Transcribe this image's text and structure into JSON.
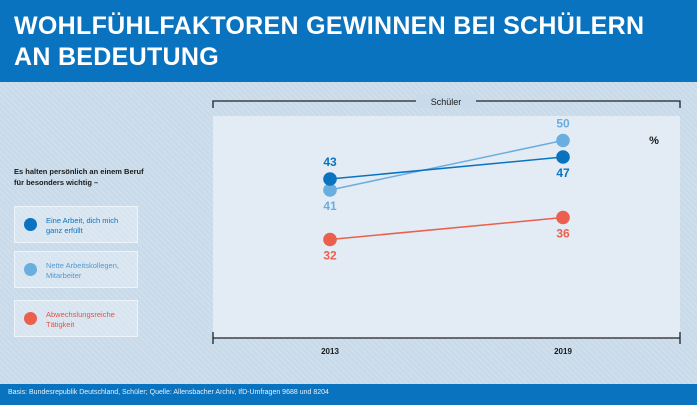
{
  "header": {
    "title_line1": "WOHLFÜHLFAKTOREN GEWINNEN BEI SCHÜLERN",
    "title_line2": "AN BEDEUTUNG"
  },
  "intro": "Es halten persönlich an einem Beruf für besonders wichtig –",
  "legend": [
    {
      "label": "Eine Arbeit, dich mich ganz erfüllt",
      "color": "#0a73bf"
    },
    {
      "label": "Nette Arbeitskollegen, Mitarbeiter",
      "color": "#6aaee0"
    },
    {
      "label": "Abwechslungsreiche Tätigkeit",
      "color": "#eb5f4e"
    }
  ],
  "footer": {
    "source": "Basis: Bundesrepublik Deutschland, Schüler; Quelle: Allensbacher Archiv, IfD-Umfragen 9688 und 8204"
  },
  "chart_data": {
    "type": "line",
    "group_label": "Schüler",
    "unit": "%",
    "x": [
      "2013",
      "2019"
    ],
    "series": [
      {
        "name": "Eine Arbeit, dich mich ganz erfüllt",
        "values": [
          43,
          47
        ],
        "color": "#0a73bf"
      },
      {
        "name": "Nette Arbeitskollegen, Mitarbeiter",
        "values": [
          41,
          50
        ],
        "color": "#6aaee0"
      },
      {
        "name": "Abwechslungsreiche Tätigkeit",
        "values": [
          32,
          36
        ],
        "color": "#eb5f4e"
      }
    ]
  }
}
